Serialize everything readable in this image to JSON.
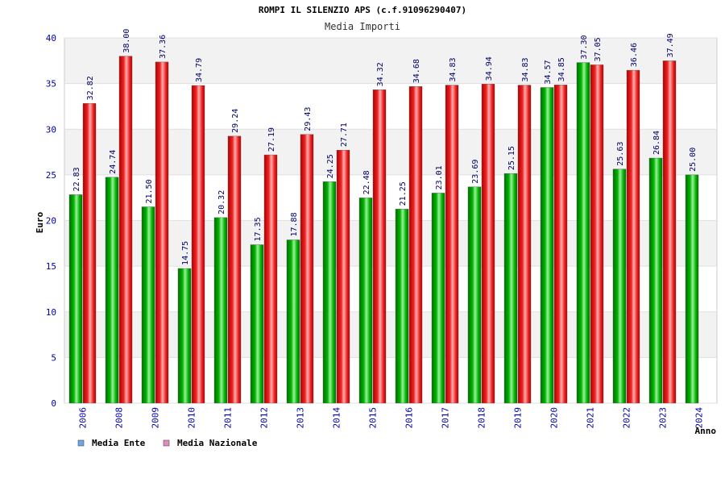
{
  "colors": {
    "ente": "#00b400",
    "ente_dark": "#007000",
    "nazionale": "#ee2222",
    "nazionale_dark": "#b00000",
    "axis_text": "#0000aa",
    "label_text": "#000066",
    "band": "#f2f2f2",
    "legend_ente": "#6fa8e8",
    "legend_nazionale": "#e58bbf"
  },
  "chart_data": {
    "type": "bar",
    "title": "ROMPI IL SILENZIO APS (c.f.91096290407)",
    "subtitle": "Media Importi",
    "xlabel": "Anno",
    "ylabel": "Euro",
    "ylim": [
      0,
      40
    ],
    "yticks": [
      "0",
      "5",
      "10",
      "15",
      "20",
      "25",
      "30",
      "35",
      "40"
    ],
    "grid": true,
    "legend_position": "bottom-left",
    "categories": [
      "2006",
      "2008",
      "2009",
      "2010",
      "2011",
      "2012",
      "2013",
      "2014",
      "2015",
      "2016",
      "2017",
      "2018",
      "2019",
      "2020",
      "2021",
      "2022",
      "2023",
      "2024"
    ],
    "series": [
      {
        "name": "Media Ente",
        "values": [
          22.83,
          24.74,
          21.5,
          14.75,
          20.32,
          17.35,
          17.88,
          24.25,
          22.48,
          21.25,
          23.01,
          23.69,
          25.15,
          34.57,
          37.3,
          25.63,
          26.84,
          25.0
        ],
        "labels": [
          "22.83",
          "24.74",
          "21.50",
          "14.75",
          "20.32",
          "17.35",
          "17.88",
          "24.25",
          "22.48",
          "21.25",
          "23.01",
          "23.69",
          "25.15",
          "34.57",
          "37.30",
          "25.63",
          "26.84",
          "25.00"
        ]
      },
      {
        "name": "Media Nazionale",
        "values": [
          32.82,
          38.0,
          37.36,
          34.79,
          29.24,
          27.19,
          29.43,
          27.71,
          34.32,
          34.68,
          34.83,
          34.94,
          34.83,
          34.85,
          37.05,
          36.46,
          37.49,
          null
        ],
        "labels": [
          "32.82",
          "38.00",
          "37.36",
          "34.79",
          "29.24",
          "27.19",
          "29.43",
          "27.71",
          "34.32",
          "34.68",
          "34.83",
          "34.94",
          "34.83",
          "34.85",
          "37.05",
          "36.46",
          "37.49",
          null
        ]
      }
    ]
  }
}
